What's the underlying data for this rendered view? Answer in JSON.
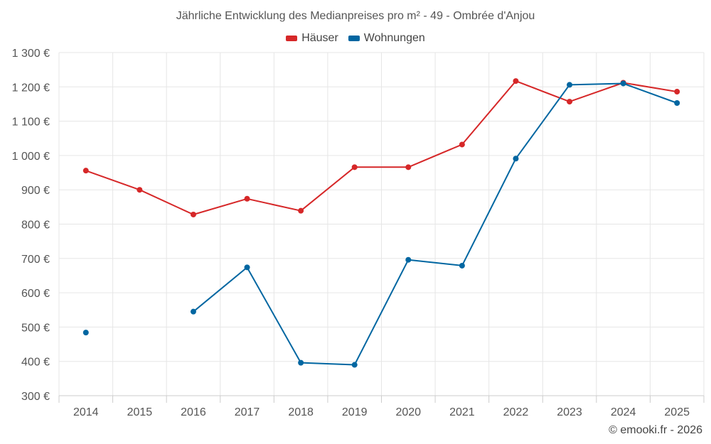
{
  "chart_data": {
    "type": "line",
    "title": "Jährliche Entwicklung des Medianpreises pro m² - 49 - Ombrée d'Anjou",
    "categories": [
      "2014",
      "2015",
      "2016",
      "2017",
      "2018",
      "2019",
      "2020",
      "2021",
      "2022",
      "2023",
      "2024",
      "2025"
    ],
    "yticks": [
      300,
      400,
      500,
      600,
      700,
      800,
      900,
      1000,
      1100,
      1200,
      1300
    ],
    "ytick_labels": [
      "300 €",
      "400 €",
      "500 €",
      "600 €",
      "700 €",
      "800 €",
      "900 €",
      "1 000 €",
      "1 100 €",
      "1 200 €",
      "1 300 €"
    ],
    "ylim": [
      300,
      1300
    ],
    "xlabel": "",
    "ylabel": "",
    "grid": true,
    "legend_position": "top-center",
    "series": [
      {
        "name": "Häuser",
        "color": "#d62728",
        "values": [
          956,
          900,
          828,
          874,
          839,
          966,
          966,
          1032,
          1217,
          1157,
          1212,
          1186
        ]
      },
      {
        "name": "Wohnungen",
        "color": "#0066a1",
        "values": [
          484,
          null,
          545,
          674,
          396,
          390,
          696,
          679,
          991,
          1206,
          1210,
          1153
        ]
      }
    ]
  },
  "legend": {
    "items": [
      {
        "label": "Häuser",
        "color": "#d62728"
      },
      {
        "label": "Wohnungen",
        "color": "#0066a1"
      }
    ]
  },
  "credits": "© emooki.fr - 2026"
}
